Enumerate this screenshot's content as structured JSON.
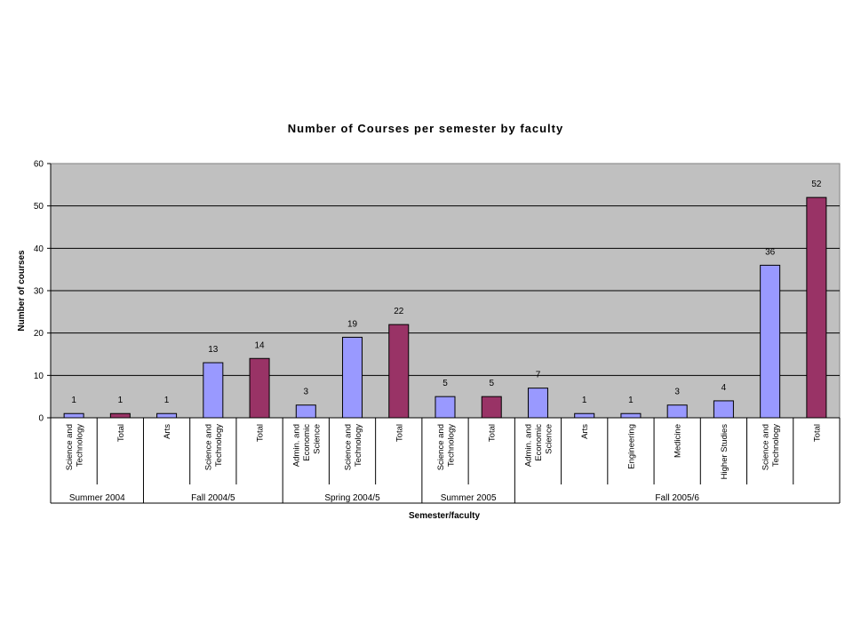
{
  "chart_data": {
    "type": "bar",
    "title": "Number of Courses per semester by faculty",
    "xlabel": "Semester/faculty",
    "ylabel": "Number of courses",
    "ylim": [
      0,
      60
    ],
    "yticks": [
      0,
      10,
      20,
      30,
      40,
      50,
      60
    ],
    "grid": true,
    "colors": {
      "faculty": "#9999ff",
      "total": "#993366",
      "plot_bg": "#c0c0c0"
    },
    "categories": [
      {
        "label": [
          "Science and",
          "Technology"
        ],
        "value": 1,
        "kind": "faculty",
        "group": 0
      },
      {
        "label": [
          "Total"
        ],
        "value": 1,
        "kind": "total",
        "group": 0
      },
      {
        "label": [
          "Arts"
        ],
        "value": 1,
        "kind": "faculty",
        "group": 1
      },
      {
        "label": [
          "Science and",
          "Technology"
        ],
        "value": 13,
        "kind": "faculty",
        "group": 1
      },
      {
        "label": [
          "Total"
        ],
        "value": 14,
        "kind": "total",
        "group": 1
      },
      {
        "label": [
          "Admin. and",
          "Economic",
          "Science"
        ],
        "value": 3,
        "kind": "faculty",
        "group": 2
      },
      {
        "label": [
          "Science and",
          "Technology"
        ],
        "value": 19,
        "kind": "faculty",
        "group": 2
      },
      {
        "label": [
          "Total"
        ],
        "value": 22,
        "kind": "total",
        "group": 2
      },
      {
        "label": [
          "Science and",
          "Technology"
        ],
        "value": 5,
        "kind": "faculty",
        "group": 3
      },
      {
        "label": [
          "Total"
        ],
        "value": 5,
        "kind": "total",
        "group": 3
      },
      {
        "label": [
          "Admin. and",
          "Economic",
          "Science"
        ],
        "value": 7,
        "kind": "faculty",
        "group": 4
      },
      {
        "label": [
          "Arts"
        ],
        "value": 1,
        "kind": "faculty",
        "group": 4
      },
      {
        "label": [
          "Engineering"
        ],
        "value": 1,
        "kind": "faculty",
        "group": 4
      },
      {
        "label": [
          "Medicine"
        ],
        "value": 3,
        "kind": "faculty",
        "group": 4
      },
      {
        "label": [
          "Higher Studies"
        ],
        "value": 4,
        "kind": "faculty",
        "group": 4
      },
      {
        "label": [
          "Science and",
          "Technology"
        ],
        "value": 36,
        "kind": "faculty",
        "group": 4
      },
      {
        "label": [
          "Total"
        ],
        "value": 52,
        "kind": "total",
        "group": 4
      }
    ],
    "groups": [
      "Summer 2004",
      "Fall 2004/5",
      "Spring 2004/5",
      "Summer 2005",
      "Fall 2005/6"
    ]
  }
}
